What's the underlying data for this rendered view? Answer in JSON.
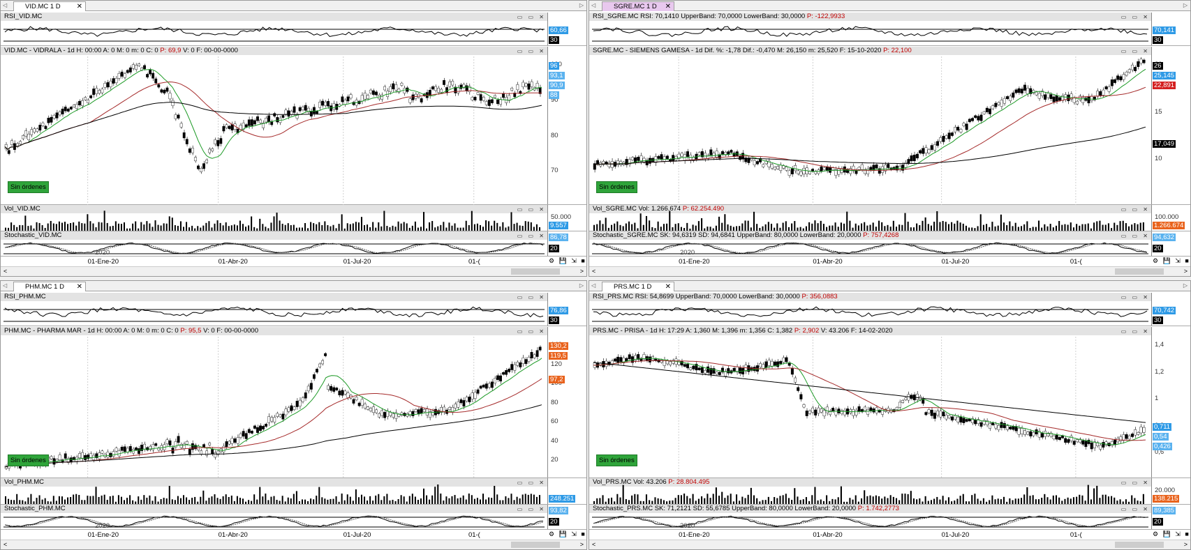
{
  "panes": [
    {
      "tab": "VID.MC 1 D",
      "active": false,
      "rsi_title": "RSI_VID.MC",
      "rsi_tags": [
        "60,66",
        "30"
      ],
      "main_title": "VID.MC - VIDRALA - 1d H: 00:00 A: 0 M: 0 m: 0 C: 0",
      "main_p": "P: 69,9",
      "main_tail": "V: 0 F: 00-00-0000",
      "main_ticks": [
        "100",
        "90",
        "80",
        "70"
      ],
      "main_tags": [
        "96",
        "93,1",
        "90,9",
        "88"
      ],
      "vol_title": "Vol_VID.MC",
      "vol_p": "",
      "vol_ticks": [
        "50.000"
      ],
      "vol_tag": "9.557",
      "sto_title": "Stochastic_VID.MC",
      "sto_p": "",
      "sto_tags": [
        "86,78",
        "20"
      ],
      "year": "2020",
      "dates": [
        "01-Ene-20",
        "01-Abr-20",
        "01-Jul-20",
        "01-("
      ],
      "sin": "Sin órdenes"
    },
    {
      "tab": "SGRE.MC 1 D",
      "active": true,
      "rsi_title": "RSI_SGRE.MC  RSI: 70,1410  UpperBand: 70,0000  LowerBand: 30,0000",
      "rsi_p": "P: -122,9933",
      "rsi_tags": [
        "70,141",
        "30"
      ],
      "main_title": "SGRE.MC - SIEMENS GAMESA - 1d  Dif. %: -1,78  Dif.: -0,470  M: 26,150  m: 25,520  F: 15-10-2020",
      "main_p": "P: 22,100",
      "main_tail": "",
      "main_ticks": [
        "20",
        "15",
        "10"
      ],
      "main_tags": [
        "26",
        "25,145",
        "22,891",
        "17,049"
      ],
      "vol_title": "Vol_SGRE.MC  Vol: 1.266.674",
      "vol_p": "P: 62.254.490",
      "vol_ticks": [
        "100.000"
      ],
      "vol_tag": "1.266.674",
      "sto_title": "Stochastic_SGRE.MC  SK: 94,6319  SD: 94,6841  UpperBand: 80,0000  LowerBand: 20,0000",
      "sto_p": "P: 757,4268",
      "sto_tags": [
        "94,632",
        "20"
      ],
      "year": "2020",
      "dates": [
        "01-Ene-20",
        "01-Abr-20",
        "01-Jul-20",
        "01-("
      ],
      "sin": "Sin órdenes"
    },
    {
      "tab": "PHM.MC 1 D",
      "active": false,
      "rsi_title": "RSI_PHM.MC",
      "rsi_tags": [
        "76,86",
        "30"
      ],
      "main_title": "PHM.MC - PHARMA MAR - 1d H: 00:00 A: 0 M: 0 m: 0 C: 0",
      "main_p": "P: 95,5",
      "main_tail": "V: 0 F: 00-00-0000",
      "main_ticks": [
        "140",
        "120",
        "100",
        "80",
        "60",
        "40",
        "20"
      ],
      "main_tags": [
        "130,2",
        "119,5",
        "97,2"
      ],
      "vol_title": "Vol_PHM.MC",
      "vol_p": "",
      "vol_ticks": [],
      "vol_tag": "248.251",
      "sto_title": "Stochastic_PHM.MC",
      "sto_p": "",
      "sto_tags": [
        "93,82",
        "20"
      ],
      "year": "2020",
      "dates": [
        "01-Ene-20",
        "01-Abr-20",
        "01-Jul-20",
        "01-("
      ],
      "sin": "Sin órdenes"
    },
    {
      "tab": "PRS.MC 1 D",
      "active": false,
      "rsi_title": "RSI_PRS.MC  RSI: 54,8699  UpperBand: 70,0000  LowerBand: 30,0000",
      "rsi_p": "P: 356,0883",
      "rsi_tags": [
        "70,742",
        "30"
      ],
      "main_title": "PRS.MC - PRISA - 1d  H: 17:29  A: 1,360  M: 1,396  m: 1,356  C: 1,382",
      "main_p": "P: 2,902",
      "main_tail": "V: 43.206  F: 14-02-2020",
      "main_ticks": [
        "1,4",
        "1,2",
        "1",
        "0,8",
        "0,6"
      ],
      "main_tags": [
        "0,711",
        "0,54",
        "0,426"
      ],
      "vol_title": "Vol_PRS.MC  Vol: 43.206",
      "vol_p": "P: 28.804.495",
      "vol_ticks": [
        "20.000",
        "10.000"
      ],
      "vol_tag": "138.215",
      "sto_title": "Stochastic_PRS.MC  SK: 71,2121  SD: 55,6785  UpperBand: 80,0000  LowerBand: 20,0000",
      "sto_p": "P: 1.742,2773",
      "sto_tags": [
        "89,385",
        "20"
      ],
      "year": "2020",
      "dates": [
        "01-Ene-20",
        "01-Abr-20",
        "01-Jul-20",
        "01-("
      ],
      "sin": "Sin órdenes"
    }
  ]
}
